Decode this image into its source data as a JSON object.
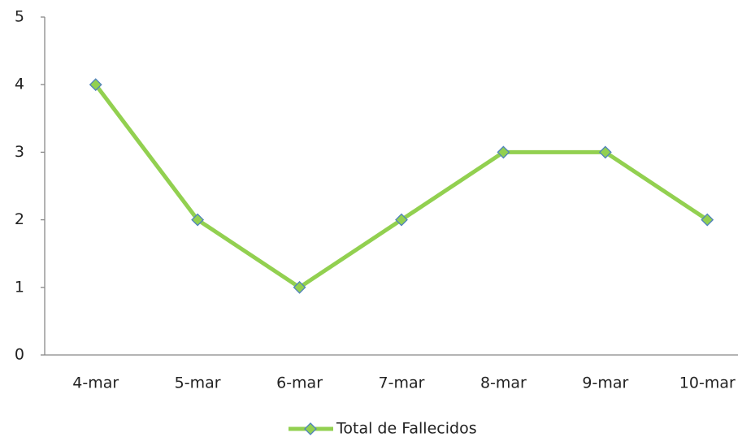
{
  "chart_data": {
    "type": "line",
    "categories": [
      "4-mar",
      "5-mar",
      "6-mar",
      "7-mar",
      "8-mar",
      "9-mar",
      "10-mar"
    ],
    "series": [
      {
        "name": "Total de Fallecidos",
        "color": "#92d050",
        "values": [
          4,
          2,
          1,
          2,
          3,
          3,
          2
        ]
      }
    ],
    "ylim": [
      0,
      5
    ],
    "yticks": [
      0,
      1,
      2,
      3,
      4,
      5
    ],
    "grid": false,
    "legend": "bottom"
  }
}
